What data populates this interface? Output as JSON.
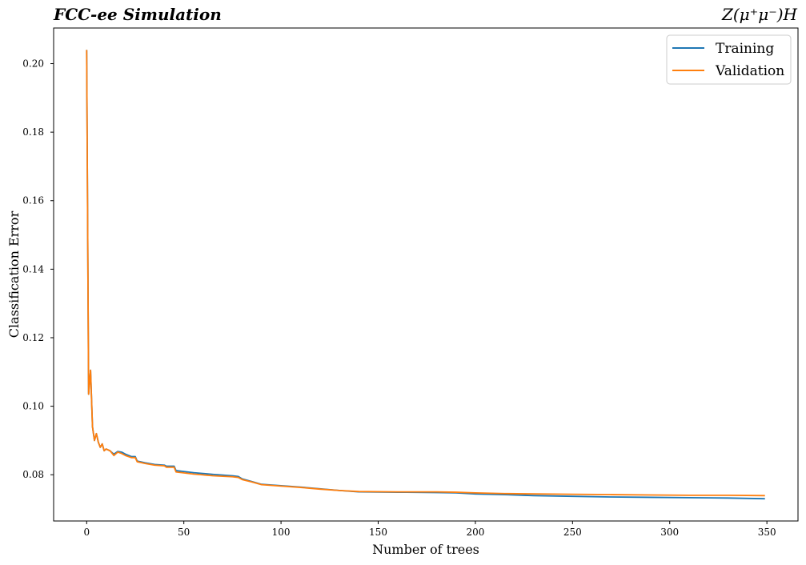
{
  "header": {
    "title_left": "FCC-ee Simulation",
    "title_right": "Z(μ⁺μ⁻)H"
  },
  "chart_data": {
    "type": "line",
    "title": "FCC-ee Simulation",
    "subtitle": "Z(μ⁺μ⁻)H",
    "xlabel": "Number of trees",
    "ylabel": "Classification Error",
    "xlim": [
      -17,
      366
    ],
    "ylim": [
      0.0665,
      0.2104
    ],
    "xticks": [
      0,
      50,
      100,
      150,
      200,
      250,
      300,
      350
    ],
    "yticks": [
      0.08,
      0.1,
      0.12,
      0.14,
      0.16,
      0.18,
      0.2
    ],
    "ytick_labels": [
      "0.08",
      "0.10",
      "0.12",
      "0.14",
      "0.16",
      "0.18",
      "0.20"
    ],
    "grid": false,
    "legend_position": "top-right",
    "series": [
      {
        "name": "Training",
        "color": "#1f77b4",
        "points": [
          [
            0,
            0.204
          ],
          [
            1,
            0.1035
          ],
          [
            2,
            0.1105
          ],
          [
            3,
            0.094
          ],
          [
            4,
            0.09
          ],
          [
            5,
            0.092
          ],
          [
            6,
            0.0895
          ],
          [
            7,
            0.088
          ],
          [
            8,
            0.089
          ],
          [
            9,
            0.087
          ],
          [
            10,
            0.0875
          ],
          [
            12,
            0.087
          ],
          [
            14,
            0.086
          ],
          [
            16,
            0.0868
          ],
          [
            18,
            0.0866
          ],
          [
            20,
            0.086
          ],
          [
            23,
            0.0853
          ],
          [
            25,
            0.0853
          ],
          [
            26,
            0.084
          ],
          [
            30,
            0.0835
          ],
          [
            35,
            0.083
          ],
          [
            40,
            0.0828
          ],
          [
            41,
            0.0825
          ],
          [
            45,
            0.0825
          ],
          [
            46,
            0.0812
          ],
          [
            55,
            0.0806
          ],
          [
            65,
            0.0801
          ],
          [
            75,
            0.0797
          ],
          [
            78,
            0.0795
          ],
          [
            80,
            0.0788
          ],
          [
            85,
            0.078
          ],
          [
            90,
            0.0772
          ],
          [
            100,
            0.0768
          ],
          [
            110,
            0.0764
          ],
          [
            120,
            0.0759
          ],
          [
            130,
            0.0754
          ],
          [
            140,
            0.075
          ],
          [
            160,
            0.0749
          ],
          [
            180,
            0.0748
          ],
          [
            190,
            0.0747
          ],
          [
            200,
            0.0744
          ],
          [
            215,
            0.0742
          ],
          [
            230,
            0.0739
          ],
          [
            250,
            0.0737
          ],
          [
            270,
            0.0735
          ],
          [
            290,
            0.0734
          ],
          [
            310,
            0.0733
          ],
          [
            330,
            0.0732
          ],
          [
            349,
            0.073
          ]
        ]
      },
      {
        "name": "Validation",
        "color": "#ff7f0e",
        "points": [
          [
            0,
            0.204
          ],
          [
            1,
            0.1035
          ],
          [
            2,
            0.1105
          ],
          [
            3,
            0.094
          ],
          [
            4,
            0.09
          ],
          [
            5,
            0.092
          ],
          [
            6,
            0.0895
          ],
          [
            7,
            0.088
          ],
          [
            8,
            0.089
          ],
          [
            9,
            0.087
          ],
          [
            10,
            0.0875
          ],
          [
            12,
            0.087
          ],
          [
            14,
            0.0856
          ],
          [
            16,
            0.0866
          ],
          [
            18,
            0.0862
          ],
          [
            20,
            0.0856
          ],
          [
            23,
            0.085
          ],
          [
            25,
            0.085
          ],
          [
            26,
            0.0838
          ],
          [
            30,
            0.0833
          ],
          [
            35,
            0.0828
          ],
          [
            40,
            0.0826
          ],
          [
            41,
            0.0822
          ],
          [
            45,
            0.0822
          ],
          [
            46,
            0.0808
          ],
          [
            55,
            0.0802
          ],
          [
            65,
            0.0797
          ],
          [
            75,
            0.0794
          ],
          [
            78,
            0.0792
          ],
          [
            80,
            0.0786
          ],
          [
            85,
            0.0779
          ],
          [
            90,
            0.0771
          ],
          [
            100,
            0.0767
          ],
          [
            110,
            0.0763
          ],
          [
            120,
            0.0758
          ],
          [
            130,
            0.0754
          ],
          [
            140,
            0.0751
          ],
          [
            160,
            0.075
          ],
          [
            180,
            0.075
          ],
          [
            190,
            0.0749
          ],
          [
            200,
            0.0747
          ],
          [
            215,
            0.0745
          ],
          [
            230,
            0.0744
          ],
          [
            250,
            0.0743
          ],
          [
            270,
            0.0742
          ],
          [
            290,
            0.0741
          ],
          [
            310,
            0.074
          ],
          [
            330,
            0.074
          ],
          [
            349,
            0.0739
          ]
        ]
      }
    ]
  }
}
